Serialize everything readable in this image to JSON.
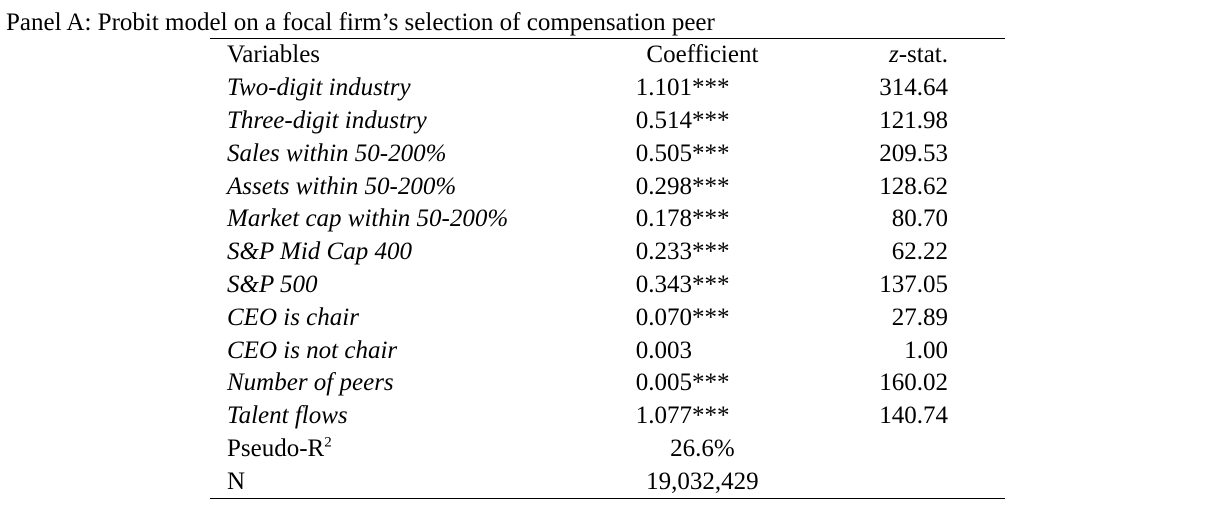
{
  "panel_title": "Panel A: Probit model on a focal firm’s selection of compensation peer",
  "headers": {
    "variables": "Variables",
    "coefficient": "Coefficient",
    "zstat_italic": "z",
    "zstat_rest": "-stat."
  },
  "rows": [
    {
      "variable": "Two-digit industry",
      "coefficient": "1.101***",
      "zstat": "314.64"
    },
    {
      "variable": "Three-digit industry",
      "coefficient": "0.514***",
      "zstat": "121.98"
    },
    {
      "variable": "Sales within 50-200%",
      "coefficient": "0.505***",
      "zstat": "209.53"
    },
    {
      "variable": "Assets within 50-200%",
      "coefficient": "0.298***",
      "zstat": "128.62"
    },
    {
      "variable": "Market cap within 50-200%",
      "coefficient": "0.178***",
      "zstat": "80.70"
    },
    {
      "variable": "S&P Mid Cap 400",
      "coefficient": "0.233***",
      "zstat": "62.22"
    },
    {
      "variable": "S&P 500",
      "coefficient": "0.343***",
      "zstat": "137.05"
    },
    {
      "variable": "CEO is chair",
      "coefficient": "0.070***",
      "zstat": "27.89"
    },
    {
      "variable": "CEO is not chair",
      "coefficient": "0.003",
      "zstat": "1.00"
    },
    {
      "variable": "Number of peers",
      "coefficient": "0.005***",
      "zstat": "160.02"
    },
    {
      "variable": "Talent flows",
      "coefficient": "1.077***",
      "zstat": "140.74"
    }
  ],
  "summary": {
    "pseudo_r2_label": "Pseudo-R",
    "pseudo_r2_superscript": "2",
    "pseudo_r2_value": "26.6%",
    "n_label": "N",
    "n_value": "19,032,429"
  }
}
